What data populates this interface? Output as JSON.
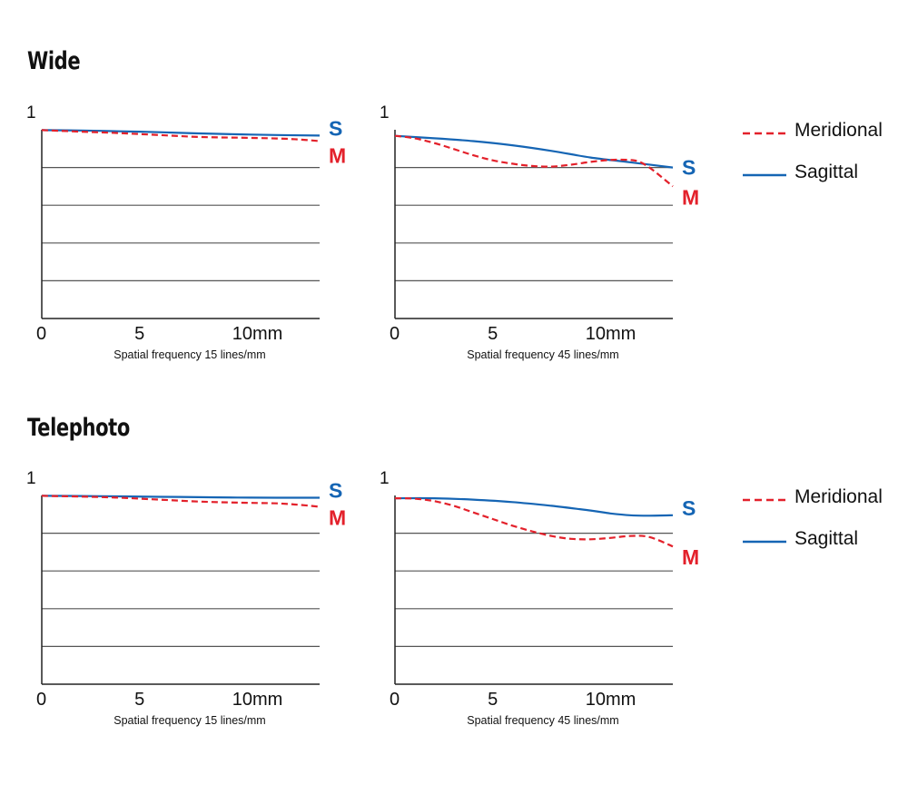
{
  "sections": [
    {
      "title": "Wide"
    },
    {
      "title": "Telephoto"
    }
  ],
  "legend": {
    "meridional_label": "Meridional",
    "sagittal_label": "Sagittal"
  },
  "colors": {
    "meridional": "#e3212b",
    "sagittal": "#1565b4",
    "grid": "#555555",
    "axis": "#222222"
  },
  "chart_data": [
    {
      "type": "line",
      "group": "Wide",
      "xlabel": "Spatial frequency 15 lines/mm",
      "x_ticks": [
        "0",
        "5",
        "10mm"
      ],
      "x_tick_values": [
        0,
        5,
        10
      ],
      "y_tick_label": "1",
      "xlim": [
        0,
        14.2
      ],
      "ylim": [
        0,
        1
      ],
      "grid": true,
      "series": [
        {
          "name": "S",
          "style": "solid",
          "x": [
            0,
            2,
            4,
            6,
            8,
            10,
            12,
            14.2
          ],
          "y": [
            0.998,
            0.996,
            0.992,
            0.987,
            0.981,
            0.976,
            0.972,
            0.969
          ]
        },
        {
          "name": "M",
          "style": "dashed",
          "x": [
            0,
            2,
            4,
            6,
            8,
            10,
            12,
            13.2,
            14.2
          ],
          "y": [
            0.998,
            0.99,
            0.982,
            0.972,
            0.962,
            0.958,
            0.954,
            0.948,
            0.94
          ]
        }
      ]
    },
    {
      "type": "line",
      "group": "Wide",
      "xlabel": "Spatial frequency 45 lines/mm",
      "x_ticks": [
        "0",
        "5",
        "10mm"
      ],
      "x_tick_values": [
        0,
        5,
        10
      ],
      "y_tick_label": "1",
      "xlim": [
        0,
        14.2
      ],
      "ylim": [
        0,
        1
      ],
      "grid": true,
      "series": [
        {
          "name": "S",
          "style": "solid",
          "x": [
            0,
            2,
            4,
            6,
            8,
            10,
            12,
            14.2
          ],
          "y": [
            0.968,
            0.955,
            0.94,
            0.918,
            0.888,
            0.853,
            0.828,
            0.8
          ]
        },
        {
          "name": "M",
          "style": "dashed",
          "x": [
            0,
            1,
            2,
            3,
            4,
            5,
            6,
            7,
            8,
            9,
            10,
            11,
            12,
            12.5,
            13,
            13.5,
            14.2
          ],
          "y": [
            0.968,
            0.955,
            0.93,
            0.898,
            0.865,
            0.838,
            0.82,
            0.808,
            0.805,
            0.815,
            0.83,
            0.84,
            0.84,
            0.83,
            0.8,
            0.76,
            0.7
          ]
        }
      ]
    },
    {
      "type": "line",
      "group": "Telephoto",
      "xlabel": "Spatial frequency 15 lines/mm",
      "x_ticks": [
        "0",
        "5",
        "10mm"
      ],
      "x_tick_values": [
        0,
        5,
        10
      ],
      "y_tick_label": "1",
      "xlim": [
        0,
        14.2
      ],
      "ylim": [
        0,
        1
      ],
      "grid": true,
      "series": [
        {
          "name": "S",
          "style": "solid",
          "x": [
            0,
            2,
            4,
            6,
            8,
            10,
            12,
            14.2
          ],
          "y": [
            0.998,
            0.997,
            0.995,
            0.993,
            0.991,
            0.989,
            0.988,
            0.988
          ]
        },
        {
          "name": "M",
          "style": "dashed",
          "x": [
            0,
            2,
            4,
            6,
            8,
            10,
            12,
            13.2,
            14.2
          ],
          "y": [
            0.998,
            0.994,
            0.988,
            0.978,
            0.968,
            0.962,
            0.958,
            0.95,
            0.94
          ]
        }
      ]
    },
    {
      "type": "line",
      "group": "Telephoto",
      "xlabel": "Spatial frequency 45 lines/mm",
      "x_ticks": [
        "0",
        "5",
        "10mm"
      ],
      "x_tick_values": [
        0,
        5,
        10
      ],
      "y_tick_label": "1",
      "xlim": [
        0,
        14.2
      ],
      "ylim": [
        0,
        1
      ],
      "grid": true,
      "series": [
        {
          "name": "S",
          "style": "solid",
          "x": [
            0,
            2,
            4,
            6,
            8,
            10,
            11,
            12,
            13,
            14.2
          ],
          "y": [
            0.985,
            0.985,
            0.978,
            0.965,
            0.945,
            0.92,
            0.905,
            0.895,
            0.893,
            0.895
          ]
        },
        {
          "name": "M",
          "style": "dashed",
          "x": [
            0,
            1,
            2,
            3,
            4,
            5,
            6,
            7,
            8,
            9,
            10,
            11,
            12,
            13,
            14.2
          ],
          "y": [
            0.985,
            0.983,
            0.97,
            0.945,
            0.91,
            0.875,
            0.84,
            0.81,
            0.785,
            0.77,
            0.768,
            0.775,
            0.785,
            0.78,
            0.73
          ]
        }
      ]
    }
  ]
}
